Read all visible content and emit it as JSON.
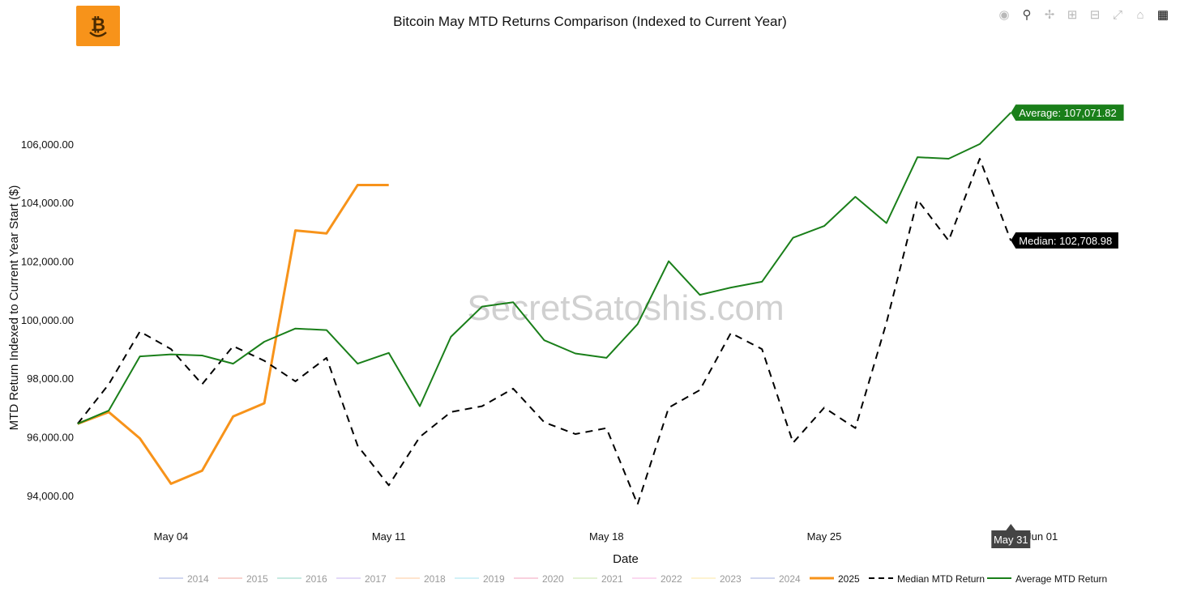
{
  "page": {
    "title": "Bitcoin May MTD Returns Comparison (Indexed to Current Year)",
    "watermark": "SecretSatoshis.com"
  },
  "toolbar": {
    "buttons": [
      "camera-icon",
      "zoom-icon",
      "pan-icon",
      "zoom-in-icon",
      "zoom-out-icon",
      "autoscale-icon",
      "home-icon",
      "plotly-logo-icon"
    ]
  },
  "chart_data": {
    "type": "line",
    "title": "Bitcoin May MTD Returns Comparison (Indexed to Current Year)",
    "xlabel": "Date",
    "ylabel": "MTD Return Indexed to Current Year Start ($)",
    "x_tick_labels": [
      "May 04",
      "May 11",
      "May 18",
      "May 25",
      "Jun 01"
    ],
    "y_tick_labels": [
      "94,000.00",
      "96,000.00",
      "98,000.00",
      "100,000.00",
      "102,000.00",
      "104,000.00",
      "106,000.00"
    ],
    "y_ticks": [
      94000,
      96000,
      98000,
      100000,
      102000,
      104000,
      106000
    ],
    "ylim": [
      93500,
      107600
    ],
    "x_day_range": [
      1,
      31
    ],
    "x_axis_extent": [
      0.9,
      35.5
    ],
    "grid": false,
    "legend_position": "bottom",
    "legend": [
      "2014",
      "2015",
      "2016",
      "2017",
      "2018",
      "2019",
      "2020",
      "2021",
      "2022",
      "2023",
      "2024",
      "2025",
      "Median MTD Return",
      "Average MTD Return"
    ],
    "hidden_legend_colors": [
      "#a3b0e0",
      "#f1a89f",
      "#8fd6c4",
      "#c7b6f2",
      "#ffc99e",
      "#a6e3f0",
      "#f4a3bd",
      "#c7e6a9",
      "#f7b3e1",
      "#fde7a3",
      "#a3b0e0"
    ],
    "series": [
      {
        "name": "2025",
        "color": "#f7931a",
        "dash": "solid",
        "width": 3,
        "x": [
          "May 01",
          "May 02",
          "May 03",
          "May 04",
          "May 05",
          "May 06",
          "May 07",
          "May 08",
          "May 09",
          "May 10",
          "May 11"
        ],
        "y": [
          96450,
          96850,
          95950,
          94400,
          94850,
          96700,
          97150,
          103050,
          102950,
          104600,
          104600
        ]
      },
      {
        "name": "Median MTD Return",
        "color": "#000000",
        "dash": "dash",
        "width": 2,
        "x": [
          "May 01",
          "May 02",
          "May 03",
          "May 04",
          "May 05",
          "May 06",
          "May 07",
          "May 08",
          "May 09",
          "May 10",
          "May 11",
          "May 12",
          "May 13",
          "May 14",
          "May 15",
          "May 16",
          "May 17",
          "May 18",
          "May 19",
          "May 20",
          "May 21",
          "May 22",
          "May 23",
          "May 24",
          "May 25",
          "May 26",
          "May 27",
          "May 28",
          "May 29",
          "May 30",
          "May 31"
        ],
        "y": [
          96450,
          97800,
          99600,
          99000,
          97800,
          99100,
          98600,
          97900,
          98700,
          95700,
          94350,
          96000,
          96850,
          97050,
          97650,
          96500,
          96100,
          96300,
          93700,
          97000,
          97600,
          99550,
          99000,
          95800,
          97000,
          96300,
          99900,
          104100,
          102700,
          105500,
          102700
        ]
      },
      {
        "name": "Average MTD Return",
        "color": "#1a7f1a",
        "dash": "solid",
        "width": 2,
        "x": [
          "May 01",
          "May 02",
          "May 03",
          "May 04",
          "May 05",
          "May 06",
          "May 07",
          "May 08",
          "May 09",
          "May 10",
          "May 11",
          "May 12",
          "May 13",
          "May 14",
          "May 15",
          "May 16",
          "May 17",
          "May 18",
          "May 19",
          "May 20",
          "May 21",
          "May 22",
          "May 23",
          "May 24",
          "May 25",
          "May 26",
          "May 27",
          "May 28",
          "May 29",
          "May 30",
          "May 31"
        ],
        "y": [
          96450,
          96900,
          98750,
          98820,
          98780,
          98500,
          99250,
          99700,
          99650,
          98500,
          98870,
          97050,
          99420,
          100450,
          100600,
          99300,
          98850,
          98700,
          99850,
          102000,
          100850,
          101100,
          101300,
          102800,
          103200,
          104200,
          103300,
          105550,
          105500,
          106000,
          107072
        ]
      }
    ],
    "annotations": [
      {
        "text": "Average: 107,071.82",
        "color": "#1a7f1a",
        "x": "May 31",
        "y": 107072
      },
      {
        "text": "Median: 102,708.98",
        "color": "#000000",
        "x": "May 31",
        "y": 102709
      }
    ],
    "hover_label": {
      "text": "May 31",
      "x": "May 31"
    }
  }
}
